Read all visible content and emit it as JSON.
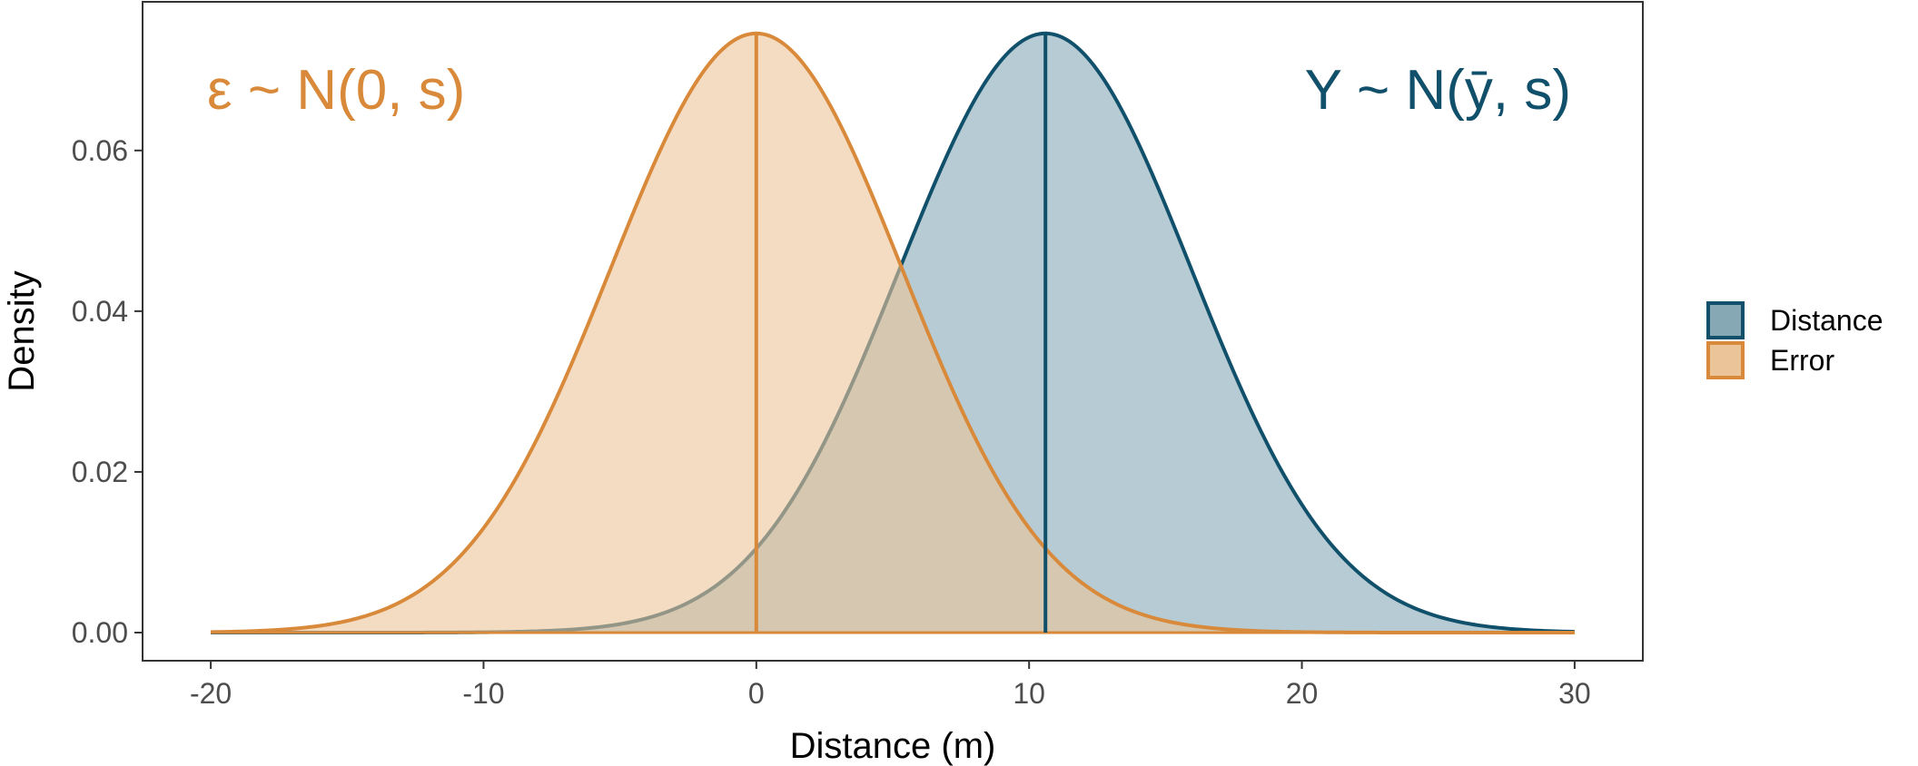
{
  "chart_data": {
    "type": "area",
    "title": "",
    "xlabel": "Distance (m)",
    "ylabel": "Density",
    "xlim": [
      -22.5,
      32.5
    ],
    "ylim": [
      -0.0035,
      0.0785
    ],
    "x_ticks": [
      {
        "value": -20,
        "label": "-20"
      },
      {
        "value": -10,
        "label": "-10"
      },
      {
        "value": 0,
        "label": "0"
      },
      {
        "value": 10,
        "label": "10"
      },
      {
        "value": 20,
        "label": "20"
      },
      {
        "value": 30,
        "label": "30"
      }
    ],
    "y_ticks": [
      {
        "value": 0,
        "label": "0.00"
      },
      {
        "value": 0.02,
        "label": "0.02"
      },
      {
        "value": 0.04,
        "label": "0.04"
      },
      {
        "value": 0.06,
        "label": "0.06"
      }
    ],
    "grid": false,
    "legend_position": "right",
    "x_range": [
      -20,
      30
    ],
    "series": [
      {
        "name": "Distance",
        "distribution": "normal",
        "mean": 10.6,
        "sd": 5.35,
        "color": "#11506b",
        "fill": "#86a8b5"
      },
      {
        "name": "Error",
        "distribution": "normal",
        "mean": 0,
        "sd": 5.35,
        "color": "#d9893a",
        "fill": "#ebc49a"
      }
    ],
    "mean_lines": [
      {
        "series": "Error",
        "x": 0
      },
      {
        "series": "Distance",
        "x": 10.6
      }
    ],
    "annotations": [
      {
        "text": "ε ~ N(0, s)",
        "color": "#d9893a",
        "position": "top-left"
      },
      {
        "text": "Y ~ N(ȳ, s)",
        "color": "#11506b",
        "position": "top-right"
      }
    ]
  }
}
